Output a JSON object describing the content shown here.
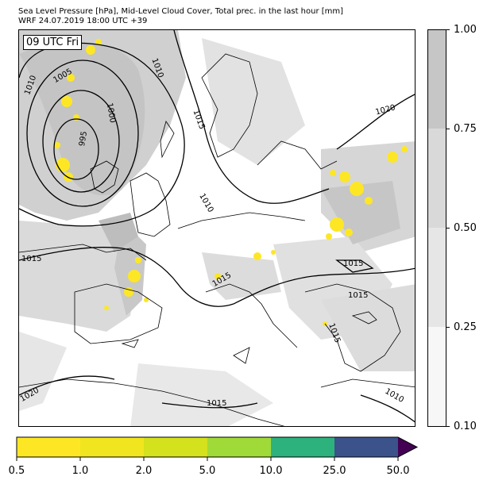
{
  "header": {
    "title_line1": "Sea Level Pressure [hPa], Mid-Level Cloud Cover, Total prec. in the last hour [mm]",
    "title_line2": "WRF 24.07.2019 18:00 UTC +39"
  },
  "map": {
    "valid_time_badge": "09 UTC Fri",
    "isobar_labels": [
      "1010",
      "1005",
      "1010",
      "1000",
      "995",
      "1015",
      "1010",
      "1020",
      "1015",
      "1015",
      "1015",
      "1015",
      "1015",
      "1020",
      "1015",
      "1010"
    ],
    "colors": {
      "land_line": "#000000",
      "isobar": "#000000",
      "cloud_low": "#eeeeee",
      "cloud_mid": "#d9d9d9",
      "cloud_high": "#c6c6c6",
      "precip_light": "#fde725"
    }
  },
  "cloud_colorbar": {
    "ticks": [
      "0.10",
      "0.25",
      "0.50",
      "0.75",
      "1.00"
    ],
    "colors": [
      "#f7f7f7",
      "#e6e6e6",
      "#d9d9d9",
      "#c6c6c6"
    ]
  },
  "precip_colorbar": {
    "ticks": [
      "0.5",
      "1.0",
      "2.0",
      "5.0",
      "10.0",
      "25.0",
      "50.0"
    ],
    "colors": [
      "#fde725",
      "#f0e51e",
      "#d4e11d",
      "#a0da39",
      "#2db27d",
      "#3b528b"
    ],
    "extend_color": "#440154"
  }
}
